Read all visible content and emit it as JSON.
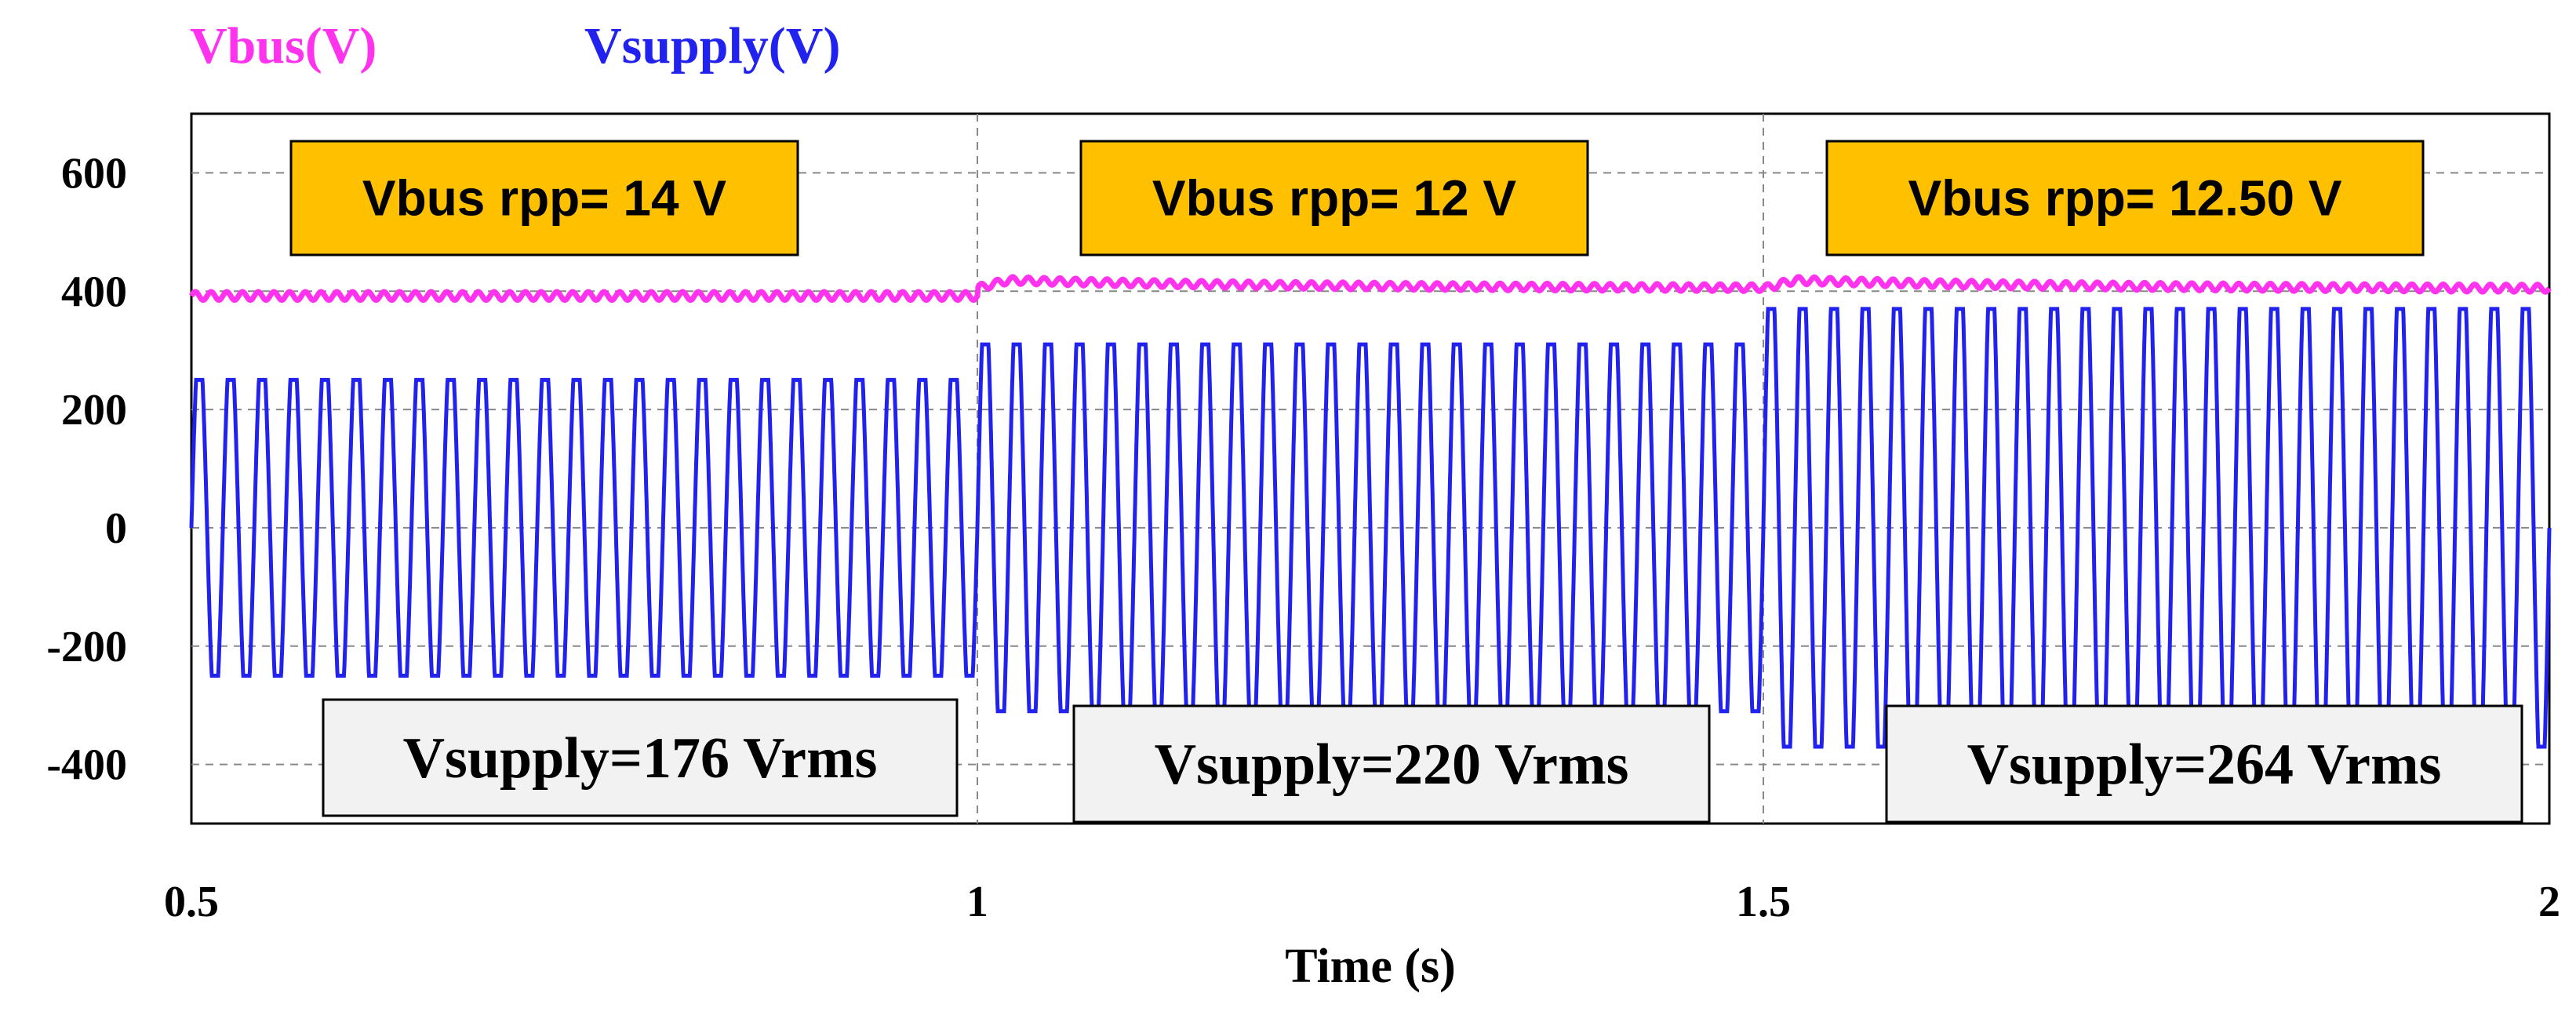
{
  "chart_data": {
    "type": "line",
    "legend": [
      {
        "name": "Vbus(V)",
        "color": "#ff33ee"
      },
      {
        "name": "Vsupply(V)",
        "color": "#2222ee"
      }
    ],
    "xlabel": "Time (s)",
    "ylabel": "",
    "xlim": [
      0.5,
      2
    ],
    "ylim": [
      -500,
      700
    ],
    "x_ticks": [
      0.5,
      1,
      1.5,
      2
    ],
    "x_tick_labels": [
      "0.5",
      "1",
      "1.5",
      "2"
    ],
    "y_ticks": [
      600,
      400,
      200,
      0,
      -200,
      -400
    ],
    "y_tick_labels": [
      "600",
      "400",
      "200",
      "0",
      "-200",
      "-400"
    ],
    "grid": true,
    "series": [
      {
        "name": "Vbus(V)",
        "color": "#ff33ee",
        "segments": [
          {
            "t_start": 0.5,
            "t_end": 1.0,
            "level": 392,
            "ripple_pp": 14
          },
          {
            "t_start": 1.0,
            "t_end": 1.5,
            "level": 405,
            "peak": 420,
            "ripple_pp": 12
          },
          {
            "t_start": 1.5,
            "t_end": 2.0,
            "level": 404,
            "peak": 420,
            "ripple_pp": 12.5
          }
        ]
      },
      {
        "name": "Vsupply(V)",
        "color": "#2222ee",
        "segments": [
          {
            "t_start": 0.5,
            "t_end": 1.0,
            "amplitude": 250,
            "vrms": 176
          },
          {
            "t_start": 1.0,
            "t_end": 1.5,
            "amplitude": 310,
            "vrms": 220
          },
          {
            "t_start": 1.5,
            "t_end": 2.0,
            "amplitude": 370,
            "vrms": 264
          }
        ],
        "frequency_hz": 50
      }
    ],
    "annotations_top": [
      "Vbus rpp= 14 V",
      "Vbus rpp= 12 V",
      "Vbus rpp= 12.50 V"
    ],
    "annotations_bottom": [
      "Vsupply=176 Vrms",
      "Vsupply=220 Vrms",
      "Vsupply=264 Vrms"
    ],
    "colors": {
      "annotation_top_bg": "#ffc000",
      "annotation_bottom_bg": "#f2f2f2",
      "grid": "#888888"
    }
  }
}
